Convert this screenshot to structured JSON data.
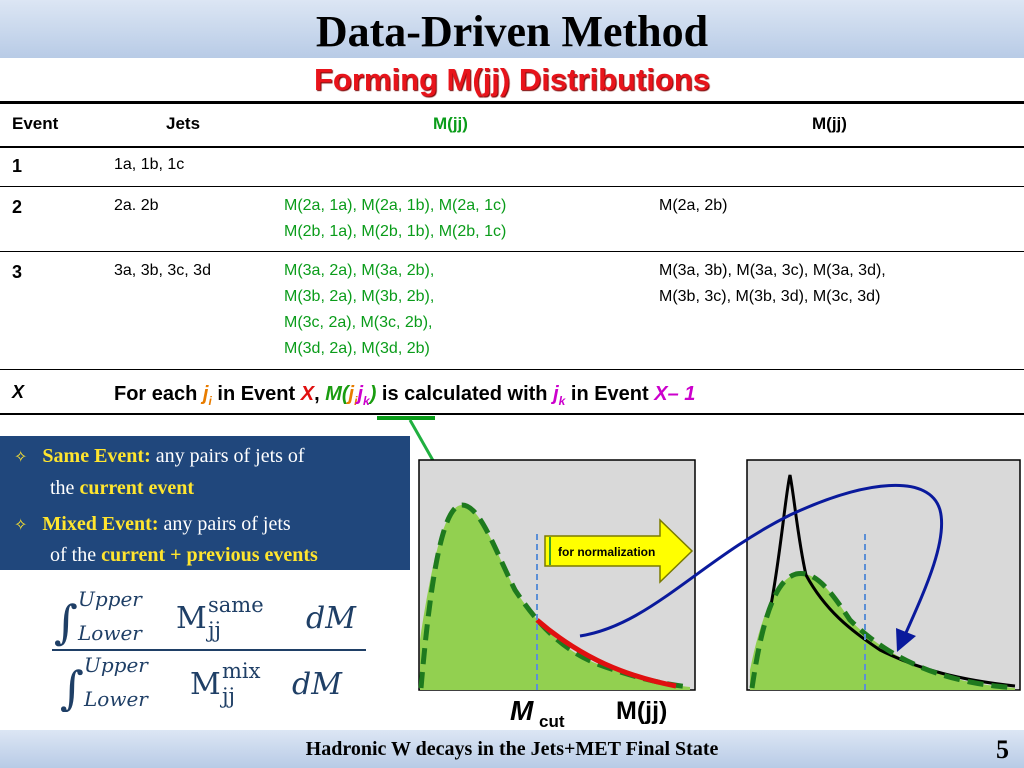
{
  "title": "Data-Driven Method",
  "subtitle": "Forming M(jj) Distributions",
  "table": {
    "headers": {
      "event": "Event",
      "jets": "Jets",
      "same": "M(jj)",
      "mixed": "M(jj)"
    },
    "rows": [
      {
        "event": "1",
        "jets": "1a, 1b, 1c",
        "same": [],
        "mixed": []
      },
      {
        "event": "2",
        "jets": "2a. 2b",
        "same": [
          "M(2a, 1a), M(2a, 1b), M(2a, 1c)",
          "M(2b, 1a), M(2b, 1b), M(2b, 1c)"
        ],
        "mixed": [
          "M(2a, 2b)"
        ]
      },
      {
        "event": "3",
        "jets": "3a, 3b, 3c, 3d",
        "same": [
          "M(3a, 2a), M(3a, 2b),",
          "M(3b, 2a), M(3b, 2b),",
          "M(3c, 2a), M(3c, 2b),",
          "M(3d, 2a), M(3d, 2b)"
        ],
        "mixed": [
          "M(3a, 3b), M(3a, 3c), M(3a, 3d),",
          "M(3b, 3c), M(3b, 3d), M(3c, 3d)"
        ]
      }
    ],
    "row_x": {
      "event": "X",
      "t1": "For each ",
      "j": "j",
      "i": "i",
      "t2": " in Event ",
      "X1": "X",
      "t3": ", ",
      "M": "M(",
      "ji": "j",
      "i2": "i",
      "jk": "j",
      "k": "k",
      "close": ")",
      "t4": " is calculated with ",
      "j3": "j",
      "k2": "k",
      "t5": " in Event ",
      "X2": "X",
      "minus": "– 1"
    }
  },
  "info_box": {
    "same_label": "Same Event:",
    "same_text1": " any pairs of jets of",
    "same_text2": "the ",
    "same_em": "current event",
    "mixed_label": "Mixed Event:",
    "mixed_text1": " any pairs of jets",
    "mixed_text2": "of the ",
    "mixed_em": "current + previous events"
  },
  "formula": {
    "upper": "Upper",
    "lower": "Lower",
    "m": "M",
    "same": "same",
    "mix": "mix",
    "jj": "jj",
    "dM": "dM"
  },
  "plot": {
    "arrow_label": "for normalization",
    "mcut_m": "M",
    "mcut_sub": "cut",
    "mjj": "M(jj)"
  },
  "footer": "Hadronic W decays in the Jets+MET Final State",
  "page_number": "5",
  "colors": {
    "title_red": "#e8141b",
    "green": "#0a9c1a",
    "box_blue": "#20477c",
    "yellow": "#ffe52e",
    "fill_green": "#92d050"
  }
}
